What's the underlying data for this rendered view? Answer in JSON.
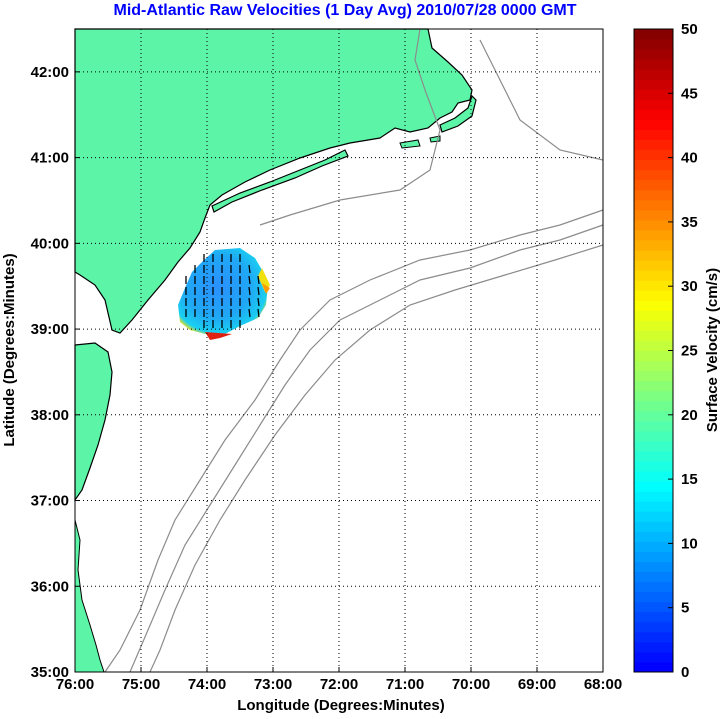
{
  "chart_data": {
    "type": "map",
    "title": "Mid-Atlantic Raw Velocities (1 Day Avg) 2010/07/28 0000 GMT",
    "xlabel": "Longitude (Degrees:Minutes)",
    "ylabel": "Latitude (Degrees:Minutes)",
    "xlim": [
      -76,
      -68
    ],
    "ylim": [
      35,
      42.5
    ],
    "x_ticks": [
      {
        "value": -76,
        "label": "76:00"
      },
      {
        "value": -75,
        "label": "75:00"
      },
      {
        "value": -74,
        "label": "74:00"
      },
      {
        "value": -73,
        "label": "73:00"
      },
      {
        "value": -72,
        "label": "72:00"
      },
      {
        "value": -71,
        "label": "71:00"
      },
      {
        "value": -70,
        "label": "70:00"
      },
      {
        "value": -69,
        "label": "69:00"
      },
      {
        "value": -68,
        "label": "68:00"
      }
    ],
    "y_ticks": [
      {
        "value": 35,
        "label": "35:00"
      },
      {
        "value": 36,
        "label": "36:00"
      },
      {
        "value": 37,
        "label": "37:00"
      },
      {
        "value": 38,
        "label": "38:00"
      },
      {
        "value": 39,
        "label": "39:00"
      },
      {
        "value": 40,
        "label": "40:00"
      },
      {
        "value": 41,
        "label": "41:00"
      },
      {
        "value": 42,
        "label": "42:00"
      }
    ],
    "grid": true,
    "colorbar": {
      "label": "Surface Velocity (cm/s)",
      "range": [
        0,
        50
      ],
      "ticks": [
        "0",
        "5",
        "10",
        "15",
        "20",
        "25",
        "30",
        "35",
        "40",
        "45",
        "50"
      ]
    },
    "colors": {
      "title": "#0000ff",
      "land": "#5cf5a8",
      "coast": "#000000",
      "bathymetry": "#8c8c8c"
    }
  }
}
